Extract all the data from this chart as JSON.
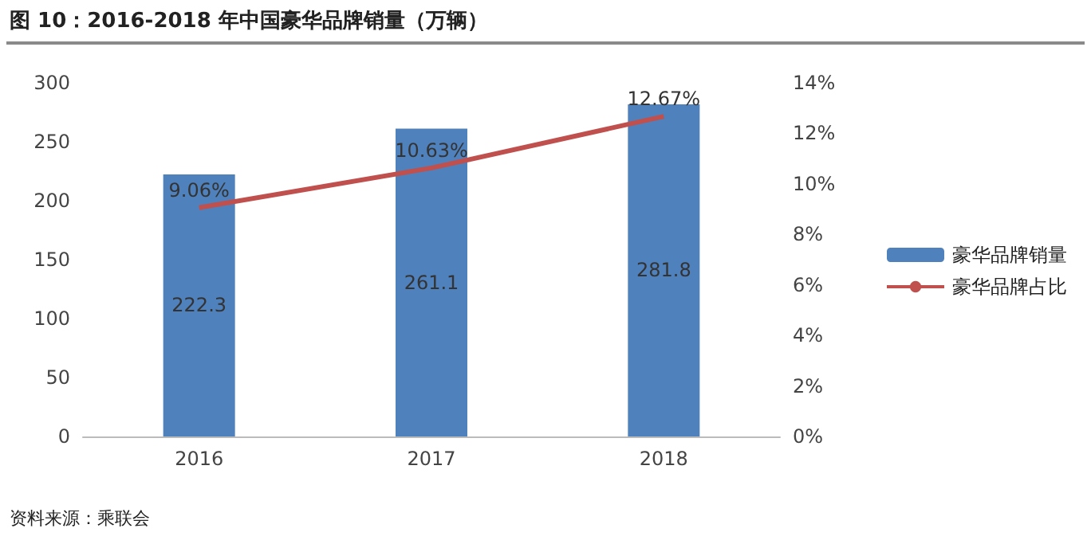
{
  "chart_data": {
    "type": "bar",
    "title": "图 10：2016-2018 年中国豪华品牌销量（万辆）",
    "categories": [
      "2016",
      "2017",
      "2018"
    ],
    "series": [
      {
        "name": "豪华品牌销量",
        "color": "#4f81bd",
        "values": [
          222.3,
          261.1,
          281.8
        ],
        "value_labels": [
          "222.3",
          "261.1",
          "281.8"
        ]
      },
      {
        "name": "豪华品牌占比",
        "type": "line",
        "axis": "y2",
        "color": "#c0504d",
        "values": [
          9.06,
          10.63,
          12.67
        ],
        "value_labels": [
          "9.06%",
          "10.63%",
          "12.67%"
        ]
      }
    ],
    "ylim": [
      0,
      300
    ],
    "yticks": [
      0,
      50,
      100,
      150,
      200,
      250,
      300
    ],
    "y2lim": [
      0,
      14
    ],
    "y2ticks": [
      {
        "value": 0,
        "label": "0%"
      },
      {
        "value": 2,
        "label": "2%"
      },
      {
        "value": 4,
        "label": "4%"
      },
      {
        "value": 6,
        "label": "6%"
      },
      {
        "value": 8,
        "label": "8%"
      },
      {
        "value": 10,
        "label": "10%"
      },
      {
        "value": 12,
        "label": "12%"
      },
      {
        "value": 14,
        "label": "14%"
      }
    ],
    "grid": false,
    "legend": "right",
    "marker": "none",
    "annotations": [
      "资料来源：乘联会"
    ]
  }
}
